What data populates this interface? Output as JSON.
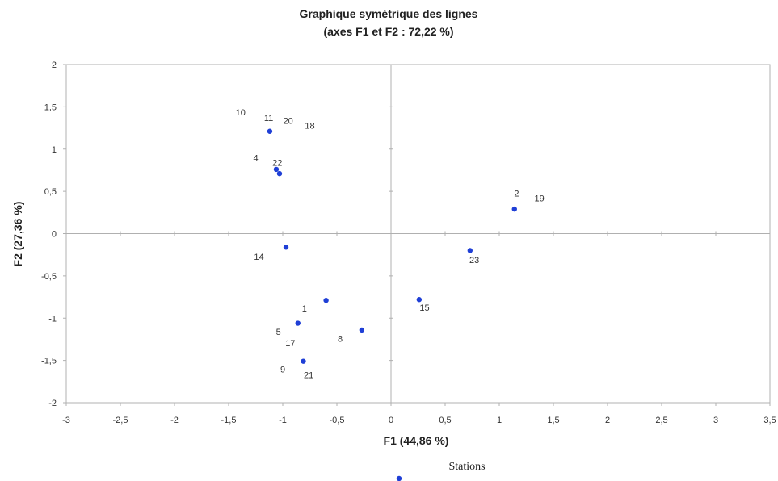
{
  "chart_data": {
    "type": "scatter",
    "title": [
      "Graphique symétrique des lignes",
      "(axes F1 et F2 : 72,22 %)"
    ],
    "xlabel": "F1 (44,86 %)",
    "ylabel": "F2 (27,36 %)",
    "xlim": [
      -3,
      3.5
    ],
    "ylim": [
      -2,
      2
    ],
    "x_ticks": [
      "-3",
      "-2,5",
      "-2",
      "-1,5",
      "-1",
      "-0,5",
      "0",
      "0,5",
      "1",
      "1,5",
      "2",
      "2,5",
      "3",
      "3,5"
    ],
    "y_ticks": [
      "2",
      "1,5",
      "1",
      "0,5",
      "0",
      "-0,5",
      "-1",
      "-1,5",
      "-2"
    ],
    "grid": false,
    "legend": {
      "position": "bottom",
      "label": "Stations"
    },
    "colors": {
      "point": "#1f3fd6",
      "axes": "#b0b0b0"
    },
    "series": [
      {
        "name": "Stations",
        "points": [
          {
            "x": -1.12,
            "y": 1.21
          },
          {
            "x": -1.06,
            "y": 0.76
          },
          {
            "x": -1.03,
            "y": 0.71
          },
          {
            "x": -0.97,
            "y": -0.16
          },
          {
            "x": -0.6,
            "y": -0.79
          },
          {
            "x": -0.86,
            "y": -1.06
          },
          {
            "x": -0.27,
            "y": -1.14
          },
          {
            "x": -0.81,
            "y": -1.51
          },
          {
            "x": 0.26,
            "y": -0.78
          },
          {
            "x": 0.73,
            "y": -0.2
          },
          {
            "x": 1.14,
            "y": 0.29
          }
        ]
      }
    ],
    "annotations": [
      {
        "text": "10",
        "x": -1.39,
        "y": 1.4
      },
      {
        "text": "11",
        "x": -1.13,
        "y": 1.33
      },
      {
        "text": "20",
        "x": -0.95,
        "y": 1.3
      },
      {
        "text": "18",
        "x": -0.75,
        "y": 1.24
      },
      {
        "text": "4",
        "x": -1.25,
        "y": 0.86
      },
      {
        "text": "22",
        "x": -1.05,
        "y": 0.8
      },
      {
        "text": "2",
        "x": 1.16,
        "y": 0.44
      },
      {
        "text": "19",
        "x": 1.37,
        "y": 0.38
      },
      {
        "text": "14",
        "x": -1.22,
        "y": -0.31
      },
      {
        "text": "23",
        "x": 0.77,
        "y": -0.35
      },
      {
        "text": "1",
        "x": -0.8,
        "y": -0.92
      },
      {
        "text": "15",
        "x": 0.31,
        "y": -0.91
      },
      {
        "text": "5",
        "x": -1.04,
        "y": -1.2
      },
      {
        "text": "8",
        "x": -0.47,
        "y": -1.28
      },
      {
        "text": "17",
        "x": -0.93,
        "y": -1.33
      },
      {
        "text": "9",
        "x": -1.0,
        "y": -1.64
      },
      {
        "text": "21",
        "x": -0.76,
        "y": -1.71
      }
    ]
  }
}
